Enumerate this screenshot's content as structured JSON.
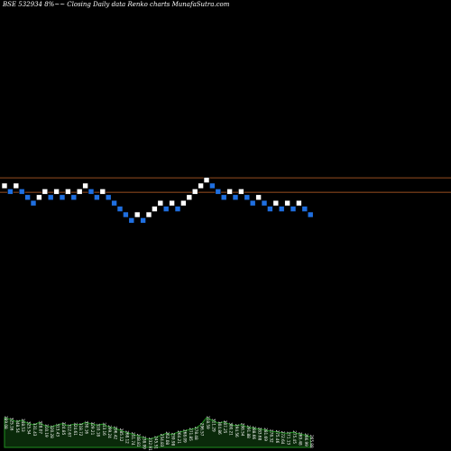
{
  "header": {
    "title": "BSE 532934  8%~~  Closing Daily data  Renko  charts MunafaSutra.com"
  },
  "colors": {
    "background": "#000000",
    "up_brick": "#ffffff",
    "down_brick": "#1f6fe0",
    "reference_line": "#c8662a",
    "volume_fill": "#0a2a0a",
    "volume_line": "#1f8f1f",
    "label_text": "#ffffff"
  },
  "chart_data": {
    "type": "renko",
    "title": "BSE 532934  8%~~  Closing Daily data  Renko  charts MunafaSutra.com",
    "grid": false,
    "reference_lines": [
      1,
      -1.5
    ],
    "bricks": [
      {
        "level": 0,
        "dir": "up"
      },
      {
        "level": -1,
        "dir": "down"
      },
      {
        "level": 0,
        "dir": "up"
      },
      {
        "level": -1,
        "dir": "down"
      },
      {
        "level": -2,
        "dir": "down"
      },
      {
        "level": -3,
        "dir": "down"
      },
      {
        "level": -2,
        "dir": "up"
      },
      {
        "level": -1,
        "dir": "up"
      },
      {
        "level": -2,
        "dir": "down"
      },
      {
        "level": -1,
        "dir": "up"
      },
      {
        "level": -2,
        "dir": "down"
      },
      {
        "level": -1,
        "dir": "up"
      },
      {
        "level": -2,
        "dir": "down"
      },
      {
        "level": -1,
        "dir": "up"
      },
      {
        "level": 0,
        "dir": "up"
      },
      {
        "level": -1,
        "dir": "down"
      },
      {
        "level": -2,
        "dir": "down"
      },
      {
        "level": -1,
        "dir": "up"
      },
      {
        "level": -2,
        "dir": "down"
      },
      {
        "level": -3,
        "dir": "down"
      },
      {
        "level": -4,
        "dir": "down"
      },
      {
        "level": -5,
        "dir": "down"
      },
      {
        "level": -6,
        "dir": "down"
      },
      {
        "level": -5,
        "dir": "up"
      },
      {
        "level": -6,
        "dir": "down"
      },
      {
        "level": -5,
        "dir": "up"
      },
      {
        "level": -4,
        "dir": "up"
      },
      {
        "level": -3,
        "dir": "up"
      },
      {
        "level": -4,
        "dir": "down"
      },
      {
        "level": -3,
        "dir": "up"
      },
      {
        "level": -4,
        "dir": "down"
      },
      {
        "level": -3,
        "dir": "up"
      },
      {
        "level": -2,
        "dir": "up"
      },
      {
        "level": -1,
        "dir": "up"
      },
      {
        "level": 0,
        "dir": "up"
      },
      {
        "level": 1,
        "dir": "up"
      },
      {
        "level": 0,
        "dir": "down"
      },
      {
        "level": -1,
        "dir": "down"
      },
      {
        "level": -2,
        "dir": "down"
      },
      {
        "level": -1,
        "dir": "up"
      },
      {
        "level": -2,
        "dir": "down"
      },
      {
        "level": -1,
        "dir": "up"
      },
      {
        "level": -2,
        "dir": "down"
      },
      {
        "level": -3,
        "dir": "down"
      },
      {
        "level": -2,
        "dir": "up"
      },
      {
        "level": -3,
        "dir": "down"
      },
      {
        "level": -4,
        "dir": "down"
      },
      {
        "level": -3,
        "dir": "up"
      },
      {
        "level": -4,
        "dir": "down"
      },
      {
        "level": -3,
        "dir": "up"
      },
      {
        "level": -4,
        "dir": "down"
      },
      {
        "level": -3,
        "dir": "up"
      },
      {
        "level": -4,
        "dir": "down"
      },
      {
        "level": -5,
        "dir": "down"
      }
    ],
    "volume": [
      0.55,
      0.52,
      0.48,
      0.5,
      0.45,
      0.42,
      0.46,
      0.4,
      0.38,
      0.41,
      0.44,
      0.4,
      0.43,
      0.42,
      0.46,
      0.44,
      0.41,
      0.43,
      0.38,
      0.36,
      0.32,
      0.28,
      0.25,
      0.22,
      0.18,
      0.15,
      0.18,
      0.22,
      0.26,
      0.24,
      0.28,
      0.3,
      0.33,
      0.35,
      0.42,
      0.55,
      0.5,
      0.45,
      0.47,
      0.43,
      0.4,
      0.42,
      0.38,
      0.36,
      0.34,
      0.33,
      0.3,
      0.29,
      0.27,
      0.26,
      0.28,
      0.25,
      0.23,
      0.2
    ],
    "volume_labels": [
      "389.08",
      "325.16",
      "348.54",
      "348.53",
      "325.54",
      "331.43",
      "328.07",
      "310.19",
      "320.28",
      "313.43",
      "324.85",
      "312.67",
      "324.61",
      "318.72",
      "330.16",
      "329.21",
      "310.18",
      "313.16",
      "299.24",
      "296.42",
      "285.12",
      "268.12",
      "251.74",
      "248.81",
      "238.99",
      "232.91",
      "245.51",
      "254.83",
      "262.08",
      "259.98",
      "264.21",
      "268.09",
      "271.85",
      "278.48",
      "296.57",
      "318.59",
      "311.29",
      "304.86",
      "307.25",
      "300.21",
      "294.56",
      "298.54",
      "291.88",
      "288.66",
      "283.68",
      "281.69",
      "278.32",
      "275.46",
      "272.64",
      "271.13",
      "275.45",
      "269.48",
      "266.99",
      "265.88"
    ]
  }
}
